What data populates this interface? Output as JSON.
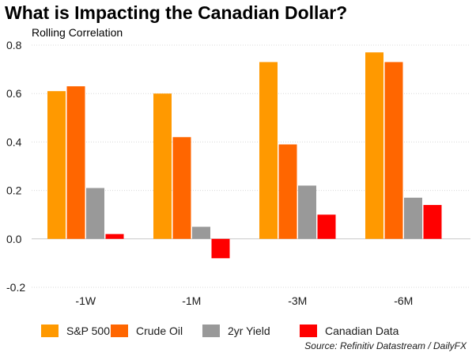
{
  "chart_data": {
    "type": "bar",
    "title": "What is Impacting the Canadian Dollar?",
    "subtitle": "Rolling Correlation",
    "xlabel": "",
    "ylabel": "",
    "ylim": [
      -0.2,
      0.8
    ],
    "yticks": [
      -0.2,
      0.0,
      0.2,
      0.4,
      0.6,
      0.8
    ],
    "ytick_labels": [
      "-0.2",
      "0.0",
      "0.2",
      "0.4",
      "0.6",
      "0.8"
    ],
    "grid": "horizontal dotted",
    "legend_position": "bottom",
    "categories": [
      "-1W",
      "-1M",
      "-3M",
      "-6M"
    ],
    "series": [
      {
        "name": "S&P 500",
        "color": "#FF9900",
        "values": [
          0.61,
          0.6,
          0.73,
          0.77
        ]
      },
      {
        "name": "Crude Oil",
        "color": "#FF6600",
        "values": [
          0.63,
          0.42,
          0.39,
          0.73
        ]
      },
      {
        "name": "2yr Yield",
        "color": "#999999",
        "values": [
          0.21,
          0.05,
          0.22,
          0.17
        ]
      },
      {
        "name": "Canadian Data",
        "color": "#FF0000",
        "values": [
          0.02,
          -0.08,
          0.1,
          0.14
        ]
      }
    ],
    "source": "Source: Refinitiv Datastream / DailyFX"
  }
}
